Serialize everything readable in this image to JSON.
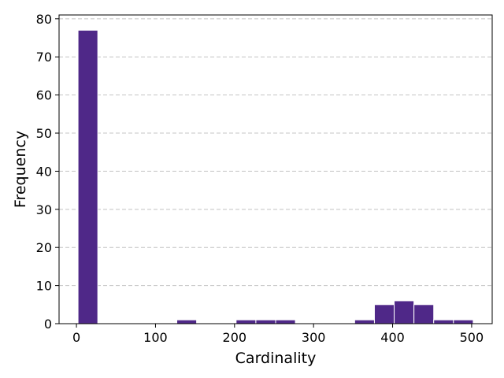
{
  "chart_data": {
    "type": "bar",
    "title": "",
    "xlabel": "Cardinality",
    "ylabel": "Frequency",
    "xlim": [
      -22,
      526
    ],
    "ylim": [
      0,
      81
    ],
    "xticks": [
      0,
      100,
      200,
      300,
      400,
      500
    ],
    "yticks": [
      0,
      10,
      20,
      30,
      40,
      50,
      60,
      70,
      80
    ],
    "grid": "y-dashed",
    "bar_color": "#4f2888",
    "bins": [
      {
        "start": 2,
        "end": 27,
        "value": 77
      },
      {
        "start": 27,
        "end": 52,
        "value": 0
      },
      {
        "start": 52,
        "end": 77,
        "value": 0
      },
      {
        "start": 77,
        "end": 102,
        "value": 0
      },
      {
        "start": 102,
        "end": 127,
        "value": 0
      },
      {
        "start": 127,
        "end": 152,
        "value": 1
      },
      {
        "start": 152,
        "end": 177,
        "value": 0
      },
      {
        "start": 177,
        "end": 202,
        "value": 0
      },
      {
        "start": 202,
        "end": 227,
        "value": 1
      },
      {
        "start": 227,
        "end": 252,
        "value": 1
      },
      {
        "start": 252,
        "end": 277,
        "value": 1
      },
      {
        "start": 277,
        "end": 302,
        "value": 0
      },
      {
        "start": 302,
        "end": 327,
        "value": 0
      },
      {
        "start": 327,
        "end": 352,
        "value": 0
      },
      {
        "start": 352,
        "end": 377,
        "value": 1
      },
      {
        "start": 377,
        "end": 402,
        "value": 5
      },
      {
        "start": 402,
        "end": 427,
        "value": 6
      },
      {
        "start": 427,
        "end": 452,
        "value": 5
      },
      {
        "start": 452,
        "end": 477,
        "value": 1
      },
      {
        "start": 477,
        "end": 502,
        "value": 1
      }
    ]
  }
}
